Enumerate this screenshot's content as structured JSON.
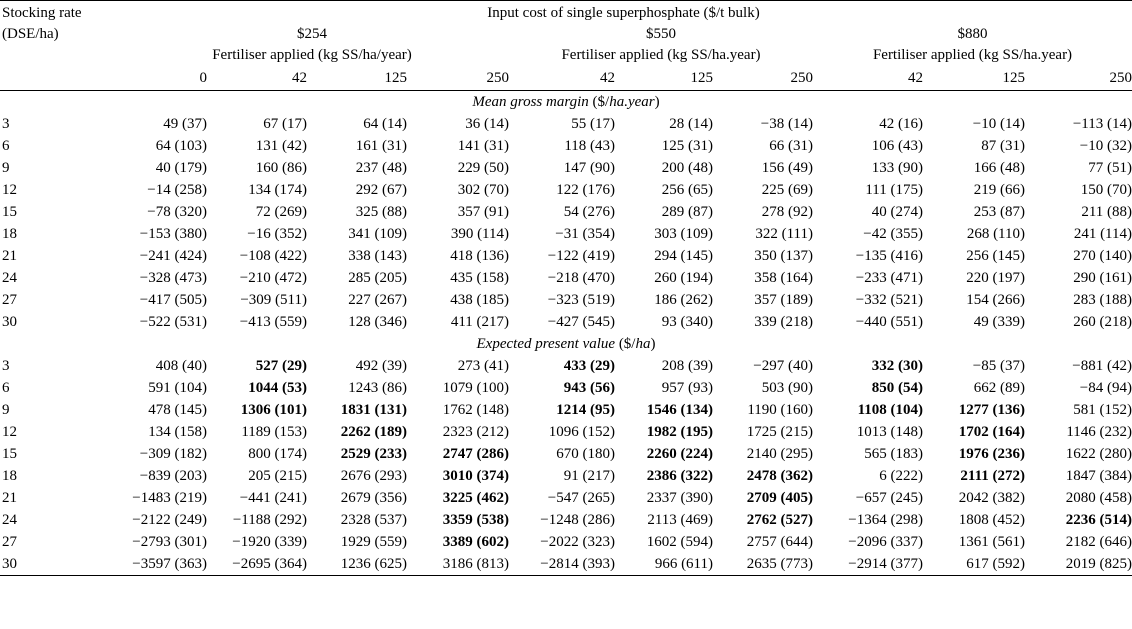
{
  "header": {
    "stocking_rate_l1": "Stocking rate",
    "stocking_rate_l2": "(DSE/ha)",
    "input_cost": "Input cost of single superphosphate ($/t bulk)",
    "price_254": "$254",
    "price_550": "$550",
    "price_880": "$880",
    "fert_254": "Fertiliser applied (kg SS/ha/year)",
    "fert_550": "Fertiliser applied (kg SS/ha.year)",
    "fert_880": "Fertiliser applied (kg SS/ha.year)",
    "cols": [
      "0",
      "42",
      "125",
      "250",
      "42",
      "125",
      "250",
      "42",
      "125",
      "250"
    ]
  },
  "sections": [
    {
      "title_italic": "Mean gross margin",
      "title_unit": " ($/",
      "title_unit_italic": "ha.year",
      "title_close": ")",
      "rows": [
        {
          "sr": "3",
          "cells": [
            [
              "49 (37)",
              0
            ],
            [
              "67 (17)",
              0
            ],
            [
              "64 (14)",
              0
            ],
            [
              "36 (14)",
              0
            ],
            [
              "55 (17)",
              0
            ],
            [
              "28 (14)",
              0
            ],
            [
              "−38 (14)",
              0
            ],
            [
              "42 (16)",
              0
            ],
            [
              "−10 (14)",
              0
            ],
            [
              "−113 (14)",
              0
            ]
          ]
        },
        {
          "sr": "6",
          "cells": [
            [
              "64 (103)",
              0
            ],
            [
              "131 (42)",
              0
            ],
            [
              "161 (31)",
              0
            ],
            [
              "141 (31)",
              0
            ],
            [
              "118 (43)",
              0
            ],
            [
              "125 (31)",
              0
            ],
            [
              "66 (31)",
              0
            ],
            [
              "106 (43)",
              0
            ],
            [
              "87 (31)",
              0
            ],
            [
              "−10 (32)",
              0
            ]
          ]
        },
        {
          "sr": "9",
          "cells": [
            [
              "40 (179)",
              0
            ],
            [
              "160 (86)",
              0
            ],
            [
              "237 (48)",
              0
            ],
            [
              "229 (50)",
              0
            ],
            [
              "147 (90)",
              0
            ],
            [
              "200 (48)",
              0
            ],
            [
              "156 (49)",
              0
            ],
            [
              "133 (90)",
              0
            ],
            [
              "166 (48)",
              0
            ],
            [
              "77 (51)",
              0
            ]
          ]
        },
        {
          "sr": "12",
          "cells": [
            [
              "−14 (258)",
              0
            ],
            [
              "134 (174)",
              0
            ],
            [
              "292 (67)",
              0
            ],
            [
              "302 (70)",
              0
            ],
            [
              "122 (176)",
              0
            ],
            [
              "256 (65)",
              0
            ],
            [
              "225 (69)",
              0
            ],
            [
              "111 (175)",
              0
            ],
            [
              "219 (66)",
              0
            ],
            [
              "150 (70)",
              0
            ]
          ]
        },
        {
          "sr": "15",
          "cells": [
            [
              "−78 (320)",
              0
            ],
            [
              "72 (269)",
              0
            ],
            [
              "325 (88)",
              0
            ],
            [
              "357 (91)",
              0
            ],
            [
              "54 (276)",
              0
            ],
            [
              "289 (87)",
              0
            ],
            [
              "278 (92)",
              0
            ],
            [
              "40 (274)",
              0
            ],
            [
              "253 (87)",
              0
            ],
            [
              "211 (88)",
              0
            ]
          ]
        },
        {
          "sr": "18",
          "cells": [
            [
              "−153 (380)",
              0
            ],
            [
              "−16 (352)",
              0
            ],
            [
              "341 (109)",
              0
            ],
            [
              "390 (114)",
              0
            ],
            [
              "−31 (354)",
              0
            ],
            [
              "303 (109)",
              0
            ],
            [
              "322 (111)",
              0
            ],
            [
              "−42 (355)",
              0
            ],
            [
              "268 (110)",
              0
            ],
            [
              "241 (114)",
              0
            ]
          ]
        },
        {
          "sr": "21",
          "cells": [
            [
              "−241 (424)",
              0
            ],
            [
              "−108 (422)",
              0
            ],
            [
              "338 (143)",
              0
            ],
            [
              "418 (136)",
              0
            ],
            [
              "−122 (419)",
              0
            ],
            [
              "294 (145)",
              0
            ],
            [
              "350 (137)",
              0
            ],
            [
              "−135 (416)",
              0
            ],
            [
              "256 (145)",
              0
            ],
            [
              "270 (140)",
              0
            ]
          ]
        },
        {
          "sr": "24",
          "cells": [
            [
              "−328 (473)",
              0
            ],
            [
              "−210 (472)",
              0
            ],
            [
              "285 (205)",
              0
            ],
            [
              "435 (158)",
              0
            ],
            [
              "−218 (470)",
              0
            ],
            [
              "260 (194)",
              0
            ],
            [
              "358 (164)",
              0
            ],
            [
              "−233 (471)",
              0
            ],
            [
              "220 (197)",
              0
            ],
            [
              "290 (161)",
              0
            ]
          ]
        },
        {
          "sr": "27",
          "cells": [
            [
              "−417 (505)",
              0
            ],
            [
              "−309 (511)",
              0
            ],
            [
              "227 (267)",
              0
            ],
            [
              "438 (185)",
              0
            ],
            [
              "−323 (519)",
              0
            ],
            [
              "186 (262)",
              0
            ],
            [
              "357 (189)",
              0
            ],
            [
              "−332 (521)",
              0
            ],
            [
              "154 (266)",
              0
            ],
            [
              "283 (188)",
              0
            ]
          ]
        },
        {
          "sr": "30",
          "cells": [
            [
              "−522 (531)",
              0
            ],
            [
              "−413 (559)",
              0
            ],
            [
              "128 (346)",
              0
            ],
            [
              "411 (217)",
              0
            ],
            [
              "−427 (545)",
              0
            ],
            [
              "93 (340)",
              0
            ],
            [
              "339 (218)",
              0
            ],
            [
              "−440 (551)",
              0
            ],
            [
              "49 (339)",
              0
            ],
            [
              "260 (218)",
              0
            ]
          ]
        }
      ]
    },
    {
      "title_italic": "Expected present value",
      "title_unit": " ($/",
      "title_unit_italic": "ha",
      "title_close": ")",
      "rows": [
        {
          "sr": "3",
          "cells": [
            [
              "408 (40)",
              0
            ],
            [
              "527 (29)",
              1
            ],
            [
              "492 (39)",
              0
            ],
            [
              "273 (41)",
              0
            ],
            [
              "433 (29)",
              1
            ],
            [
              "208 (39)",
              0
            ],
            [
              "−297 (40)",
              0
            ],
            [
              "332 (30)",
              1
            ],
            [
              "−85 (37)",
              0
            ],
            [
              "−881 (42)",
              0
            ]
          ]
        },
        {
          "sr": "6",
          "cells": [
            [
              "591 (104)",
              0
            ],
            [
              "1044 (53)",
              1
            ],
            [
              "1243 (86)",
              0
            ],
            [
              "1079 (100)",
              0
            ],
            [
              "943 (56)",
              1
            ],
            [
              "957 (93)",
              0
            ],
            [
              "503 (90)",
              0
            ],
            [
              "850 (54)",
              1
            ],
            [
              "662 (89)",
              0
            ],
            [
              "−84 (94)",
              0
            ]
          ]
        },
        {
          "sr": "9",
          "cells": [
            [
              "478 (145)",
              0
            ],
            [
              "1306 (101)",
              1
            ],
            [
              "1831 (131)",
              1
            ],
            [
              "1762 (148)",
              0
            ],
            [
              "1214 (95)",
              1
            ],
            [
              "1546 (134)",
              1
            ],
            [
              "1190 (160)",
              0
            ],
            [
              "1108 (104)",
              1
            ],
            [
              "1277 (136)",
              1
            ],
            [
              "581 (152)",
              0
            ]
          ]
        },
        {
          "sr": "12",
          "cells": [
            [
              "134 (158)",
              0
            ],
            [
              "1189 (153)",
              0
            ],
            [
              "2262 (189)",
              1
            ],
            [
              "2323 (212)",
              0
            ],
            [
              "1096 (152)",
              0
            ],
            [
              "1982 (195)",
              1
            ],
            [
              "1725 (215)",
              0
            ],
            [
              "1013 (148)",
              0
            ],
            [
              "1702 (164)",
              1
            ],
            [
              "1146 (232)",
              0
            ]
          ]
        },
        {
          "sr": "15",
          "cells": [
            [
              "−309 (182)",
              0
            ],
            [
              "800 (174)",
              0
            ],
            [
              "2529 (233)",
              1
            ],
            [
              "2747 (286)",
              1
            ],
            [
              "670 (180)",
              0
            ],
            [
              "2260 (224)",
              1
            ],
            [
              "2140 (295)",
              0
            ],
            [
              "565 (183)",
              0
            ],
            [
              "1976 (236)",
              1
            ],
            [
              "1622 (280)",
              0
            ]
          ]
        },
        {
          "sr": "18",
          "cells": [
            [
              "−839 (203)",
              0
            ],
            [
              "205 (215)",
              0
            ],
            [
              "2676 (293)",
              0
            ],
            [
              "3010 (374)",
              1
            ],
            [
              "91 (217)",
              0
            ],
            [
              "2386 (322)",
              1
            ],
            [
              "2478 (362)",
              1
            ],
            [
              "6 (222)",
              0
            ],
            [
              "2111 (272)",
              1
            ],
            [
              "1847 (384)",
              0
            ]
          ]
        },
        {
          "sr": "21",
          "cells": [
            [
              "−1483 (219)",
              0
            ],
            [
              "−441 (241)",
              0
            ],
            [
              "2679 (356)",
              0
            ],
            [
              "3225 (462)",
              1
            ],
            [
              "−547 (265)",
              0
            ],
            [
              "2337 (390)",
              0
            ],
            [
              "2709 (405)",
              1
            ],
            [
              "−657 (245)",
              0
            ],
            [
              "2042 (382)",
              0
            ],
            [
              "2080 (458)",
              0
            ]
          ]
        },
        {
          "sr": "24",
          "cells": [
            [
              "−2122 (249)",
              0
            ],
            [
              "−1188 (292)",
              0
            ],
            [
              "2328 (537)",
              0
            ],
            [
              "3359 (538)",
              1
            ],
            [
              "−1248 (286)",
              0
            ],
            [
              "2113 (469)",
              0
            ],
            [
              "2762 (527)",
              1
            ],
            [
              "−1364 (298)",
              0
            ],
            [
              "1808 (452)",
              0
            ],
            [
              "2236 (514)",
              1
            ]
          ]
        },
        {
          "sr": "27",
          "cells": [
            [
              "−2793 (301)",
              0
            ],
            [
              "−1920 (339)",
              0
            ],
            [
              "1929 (559)",
              0
            ],
            [
              "3389 (602)",
              1
            ],
            [
              "−2022 (323)",
              0
            ],
            [
              "1602 (594)",
              0
            ],
            [
              "2757 (644)",
              0
            ],
            [
              "−2096 (337)",
              0
            ],
            [
              "1361 (561)",
              0
            ],
            [
              "2182 (646)",
              0
            ]
          ]
        },
        {
          "sr": "30",
          "cells": [
            [
              "−3597 (363)",
              0
            ],
            [
              "−2695 (364)",
              0
            ],
            [
              "1236 (625)",
              0
            ],
            [
              "3186 (813)",
              0
            ],
            [
              "−2814 (393)",
              0
            ],
            [
              "966 (611)",
              0
            ],
            [
              "2635 (773)",
              0
            ],
            [
              "−2914 (377)",
              0
            ],
            [
              "617 (592)",
              0
            ],
            [
              "2019 (825)",
              0
            ]
          ]
        }
      ]
    }
  ]
}
